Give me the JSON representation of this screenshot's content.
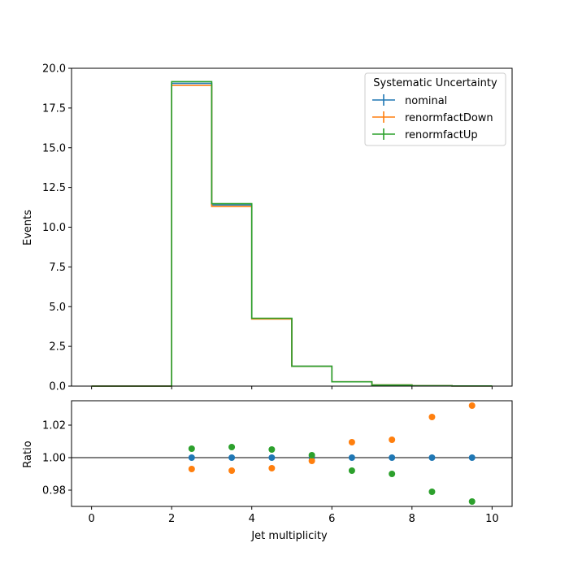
{
  "chart_data": [
    {
      "type": "line",
      "step": true,
      "ylabel": "Events",
      "ylim": [
        0,
        20
      ],
      "xlim": [
        -0.5,
        10.5
      ],
      "ytick_labels": [
        "0.0",
        "2.5",
        "5.0",
        "7.5",
        "10.0",
        "12.5",
        "15.0",
        "17.5",
        "20.0"
      ],
      "bin_edges": [
        0,
        1,
        2,
        3,
        4,
        5,
        6,
        7,
        8,
        9,
        10
      ],
      "legend": {
        "title": "Systematic Uncertainty",
        "position": "top-right"
      },
      "series": [
        {
          "name": "nominal",
          "color": "#1f77b4",
          "values": [
            0,
            0,
            19.05,
            11.4,
            4.25,
            1.25,
            0.27,
            0.07,
            0.025,
            0.008
          ]
        },
        {
          "name": "renormfactDown",
          "color": "#ff7f0e",
          "values": [
            0,
            0,
            18.92,
            11.31,
            4.22,
            1.247,
            0.273,
            0.071,
            0.026,
            0.008
          ]
        },
        {
          "name": "renormfactUp",
          "color": "#2ca02c",
          "values": [
            0,
            0,
            19.16,
            11.48,
            4.27,
            1.252,
            0.268,
            0.069,
            0.025,
            0.008
          ]
        }
      ]
    },
    {
      "type": "scatter",
      "ylabel": "Ratio",
      "xlabel": "Jet multiplicity",
      "ylim": [
        0.97,
        1.035
      ],
      "xlim": [
        -0.5,
        10.5
      ],
      "ytick_labels": [
        "0.98",
        "1.00",
        "1.02"
      ],
      "xtick_labels": [
        "0",
        "2",
        "4",
        "6",
        "8",
        "10"
      ],
      "reference_line": 1.0,
      "x": [
        2.5,
        3.5,
        4.5,
        5.5,
        6.5,
        7.5,
        8.5,
        9.5
      ],
      "series": [
        {
          "name": "nominal",
          "color": "#1f77b4",
          "values": [
            1.0,
            1.0,
            1.0,
            1.0,
            1.0,
            1.0,
            1.0,
            1.0
          ]
        },
        {
          "name": "renormfactDown",
          "color": "#ff7f0e",
          "values": [
            0.993,
            0.992,
            0.9935,
            0.998,
            1.0095,
            1.011,
            1.025,
            1.032
          ]
        },
        {
          "name": "renormfactUp",
          "color": "#2ca02c",
          "values": [
            1.0055,
            1.0065,
            1.005,
            1.0015,
            0.992,
            0.99,
            0.979,
            0.973
          ]
        }
      ]
    }
  ]
}
